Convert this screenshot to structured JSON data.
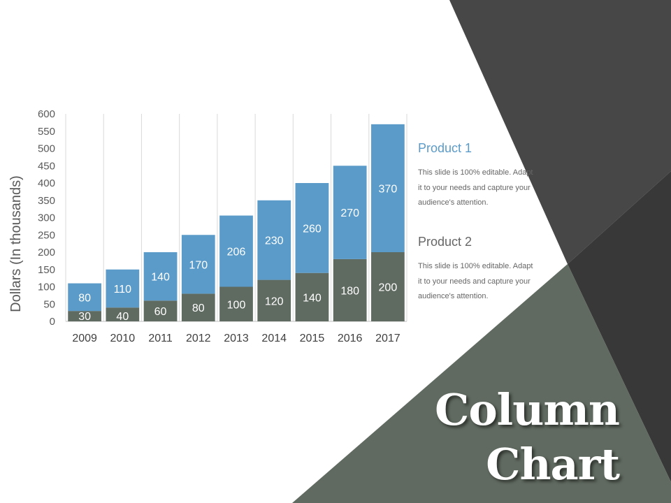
{
  "colors": {
    "product1": "#5b9bc9",
    "product2": "#5f6a61",
    "panel_dark": "#474747",
    "panel_mid": "#606a60",
    "panel_darkest": "#383838"
  },
  "slide": {
    "title_line1": "Column",
    "title_line2": "Chart"
  },
  "legend": [
    {
      "name": "Product 1",
      "text": "This slide is 100% editable. Adapt it to your needs and capture your audience's attention."
    },
    {
      "name": "Product 2",
      "text": "This slide is 100% editable. Adapt it to your needs and capture your audience's attention."
    }
  ],
  "chart_data": {
    "type": "bar",
    "stacked": true,
    "categories": [
      "2009",
      "2010",
      "2011",
      "2012",
      "2013",
      "2014",
      "2015",
      "2016",
      "2017"
    ],
    "series": [
      {
        "name": "Product 2",
        "values": [
          30,
          40,
          60,
          80,
          100,
          120,
          140,
          180,
          200
        ]
      },
      {
        "name": "Product 1",
        "values": [
          80,
          110,
          140,
          170,
          206,
          230,
          260,
          270,
          370
        ]
      }
    ],
    "ylabel": "Dollars (In thousands)",
    "xlabel": "",
    "ylim": [
      0,
      600
    ],
    "yticks": [
      0,
      50,
      100,
      150,
      200,
      250,
      300,
      350,
      400,
      450,
      500,
      550,
      600
    ],
    "grid": "vertical",
    "legend_position": "right"
  }
}
